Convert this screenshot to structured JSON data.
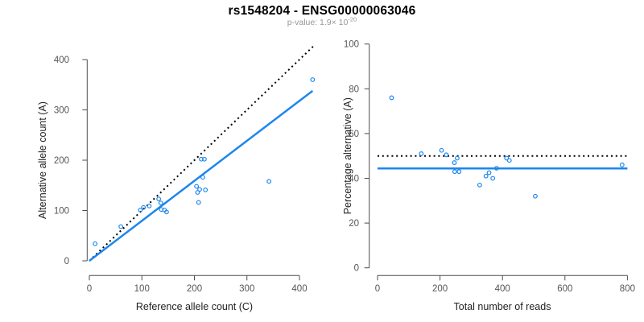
{
  "header": {
    "title": "rs1548204 - ENSG00000063046",
    "pvalue_label": "p-value: 1.9× 10",
    "pvalue_exponent": "-20"
  },
  "colors": {
    "point_blue": "#1C86EE",
    "fit_line_blue": "#1C86EE",
    "dotted_line_black": "#000000",
    "axis_line": "#4d4d4d",
    "tick_label": "#555555",
    "axis_title": "#222222",
    "subtitle_gray": "#969696"
  },
  "chart_data": [
    {
      "type": "scatter",
      "panel": "left",
      "title": "",
      "xlabel": "Reference allele count (C)",
      "ylabel": "Alternative allele count (A)",
      "xlim": [
        0,
        430
      ],
      "ylim": [
        0,
        430
      ],
      "xticks": [
        0,
        100,
        200,
        300,
        400
      ],
      "yticks": [
        0,
        100,
        200,
        300,
        400
      ],
      "grid": false,
      "legend": "none",
      "points": [
        [
          11,
          34
        ],
        [
          60,
          68
        ],
        [
          97,
          101
        ],
        [
          103,
          106
        ],
        [
          114,
          109
        ],
        [
          132,
          123
        ],
        [
          136,
          115
        ],
        [
          137,
          102
        ],
        [
          143,
          101
        ],
        [
          147,
          97
        ],
        [
          204,
          148
        ],
        [
          206,
          136
        ],
        [
          208,
          116
        ],
        [
          210,
          142
        ],
        [
          213,
          202
        ],
        [
          216,
          166
        ],
        [
          219,
          202
        ],
        [
          221,
          141
        ],
        [
          342,
          158
        ],
        [
          425,
          360
        ]
      ],
      "lines": [
        {
          "name": "identity-line",
          "style": "dotted",
          "color": "#000000",
          "slope": 1,
          "intercept": 0,
          "x_range": [
            0,
            427
          ]
        },
        {
          "name": "regression-line",
          "style": "solid",
          "color": "#1C86EE",
          "slope": 0.795,
          "intercept": 0,
          "x_range": [
            0,
            425
          ]
        }
      ]
    },
    {
      "type": "scatter",
      "panel": "right",
      "title": "",
      "xlabel": "Total number of reads",
      "ylabel": "Percentage alternative (A)",
      "xlim": [
        0,
        800
      ],
      "ylim": [
        0,
        100
      ],
      "xticks": [
        0,
        200,
        400,
        600,
        800
      ],
      "yticks": [
        0,
        20,
        40,
        60,
        80,
        100
      ],
      "grid": false,
      "legend": "none",
      "points": [
        [
          45,
          76
        ],
        [
          140,
          51
        ],
        [
          205,
          52.5
        ],
        [
          220,
          50.5
        ],
        [
          246,
          47
        ],
        [
          255,
          49
        ],
        [
          247,
          43
        ],
        [
          261,
          43
        ],
        [
          327,
          37
        ],
        [
          347,
          41
        ],
        [
          357,
          42.5
        ],
        [
          369,
          40
        ],
        [
          381,
          44.5
        ],
        [
          413,
          49
        ],
        [
          422,
          48
        ],
        [
          505,
          32
        ],
        [
          783,
          46
        ]
      ],
      "lines": [
        {
          "name": "expected-ratio-line",
          "style": "dotted",
          "color": "#000000",
          "y": 50,
          "x_range": [
            0,
            800
          ]
        },
        {
          "name": "observed-ratio-line",
          "style": "solid",
          "color": "#1C86EE",
          "y": 44.4,
          "x_range": [
            0,
            800
          ]
        }
      ]
    }
  ]
}
